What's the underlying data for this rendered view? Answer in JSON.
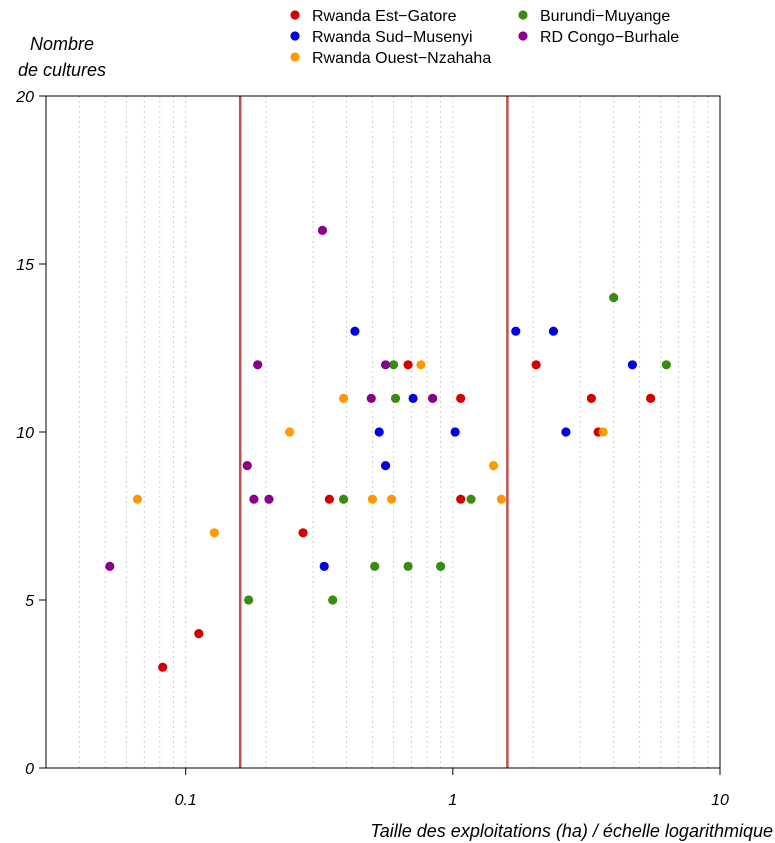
{
  "chart_data": {
    "type": "scatter",
    "title": "",
    "xlabel": "Taille des exploitations (ha) / échelle logarithmique",
    "ylabel": [
      "Nombre",
      "de cultures"
    ],
    "x_scale": "log",
    "xlim": [
      0.03,
      10
    ],
    "ylim": [
      0,
      20
    ],
    "x_ticks": [
      0.1,
      1,
      10
    ],
    "x_tick_labels": [
      "0.1",
      "1",
      "10"
    ],
    "y_ticks": [
      0,
      5,
      10,
      15,
      20
    ],
    "y_tick_labels": [
      "0",
      "5",
      "10",
      "15",
      "20"
    ],
    "grid": "dotted vertical minor lines",
    "vlines": [
      {
        "x": 0.16,
        "color": "#c0504d"
      },
      {
        "x": 1.6,
        "color": "#c0504d"
      }
    ],
    "legend_position": "top",
    "series": [
      {
        "name": "Rwanda Est−Gatore",
        "color": "#d40000",
        "points": [
          [
            0.082,
            3
          ],
          [
            0.112,
            4
          ],
          [
            0.275,
            7
          ],
          [
            0.345,
            8
          ],
          [
            0.68,
            12
          ],
          [
            1.07,
            11
          ],
          [
            1.07,
            8
          ],
          [
            2.05,
            12
          ],
          [
            3.3,
            11
          ],
          [
            3.5,
            10
          ],
          [
            5.5,
            11
          ]
        ]
      },
      {
        "name": "Rwanda Sud−Musenyi",
        "color": "#0000e0",
        "points": [
          [
            0.33,
            6
          ],
          [
            0.43,
            13
          ],
          [
            0.53,
            10
          ],
          [
            0.56,
            9
          ],
          [
            0.71,
            11
          ],
          [
            1.02,
            10
          ],
          [
            1.72,
            13
          ],
          [
            2.38,
            13
          ],
          [
            2.65,
            10
          ],
          [
            4.7,
            12
          ]
        ]
      },
      {
        "name": "Rwanda Ouest−Nzahaha",
        "color": "#ff9900",
        "points": [
          [
            0.066,
            8
          ],
          [
            0.128,
            7
          ],
          [
            0.245,
            10
          ],
          [
            0.39,
            11
          ],
          [
            0.5,
            8
          ],
          [
            0.59,
            8
          ],
          [
            0.76,
            12
          ],
          [
            0.84,
            11
          ],
          [
            1.42,
            9
          ],
          [
            1.52,
            8
          ],
          [
            3.65,
            10
          ]
        ]
      },
      {
        "name": "Burundi−Muyange",
        "color": "#3a8c10",
        "points": [
          [
            0.172,
            5
          ],
          [
            0.355,
            5
          ],
          [
            0.39,
            8
          ],
          [
            0.51,
            6
          ],
          [
            0.6,
            12
          ],
          [
            0.61,
            11
          ],
          [
            0.68,
            6
          ],
          [
            0.9,
            6
          ],
          [
            1.17,
            8
          ],
          [
            4.0,
            14
          ],
          [
            6.3,
            12
          ]
        ]
      },
      {
        "name": "RD Congo−Burhale",
        "color": "#8b008b",
        "points": [
          [
            0.052,
            6
          ],
          [
            0.17,
            9
          ],
          [
            0.18,
            8
          ],
          [
            0.186,
            12
          ],
          [
            0.205,
            8
          ],
          [
            0.325,
            16
          ],
          [
            0.495,
            11
          ],
          [
            0.56,
            12
          ],
          [
            0.84,
            11
          ]
        ]
      }
    ]
  }
}
